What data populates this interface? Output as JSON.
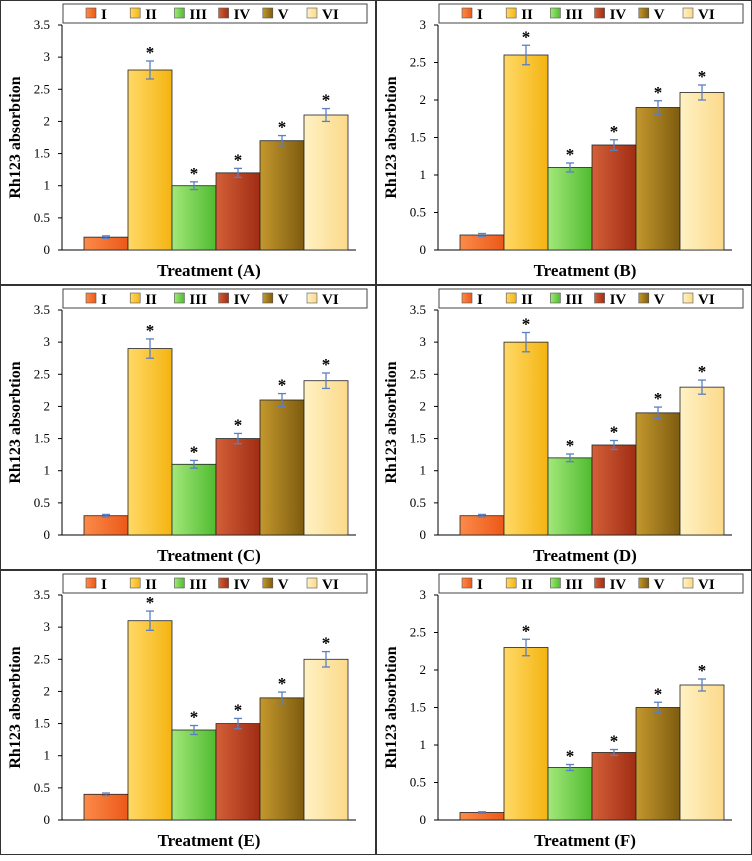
{
  "chart_data": [
    {
      "type": "bar",
      "panel": "A",
      "categories": [
        "I",
        "II",
        "III",
        "IV",
        "V",
        "VI"
      ],
      "values": [
        0.2,
        2.8,
        1.0,
        1.2,
        1.7,
        2.1
      ],
      "errors": [
        0.02,
        0.14,
        0.06,
        0.07,
        0.08,
        0.1
      ],
      "significance": [
        "",
        "*",
        "*",
        "*",
        "*",
        "*"
      ],
      "xlabel": "Treatment (A)",
      "ylabel": "Rh123 absorbtion",
      "ylim": [
        0,
        3.5
      ],
      "yticks": [
        "0",
        "0.5",
        "1",
        "1.5",
        "2",
        "2.5",
        "3",
        "3.5"
      ]
    },
    {
      "type": "bar",
      "panel": "B",
      "categories": [
        "I",
        "II",
        "III",
        "IV",
        "V",
        "VI"
      ],
      "values": [
        0.2,
        2.6,
        1.1,
        1.4,
        1.9,
        2.1
      ],
      "errors": [
        0.02,
        0.13,
        0.06,
        0.07,
        0.09,
        0.1
      ],
      "significance": [
        "",
        "*",
        "*",
        "*",
        "*",
        "*"
      ],
      "xlabel": "Treatment (B)",
      "ylabel": "Rh123 absorbtion",
      "ylim": [
        0,
        3
      ],
      "yticks": [
        "0",
        "0.5",
        "1",
        "1.5",
        "2",
        "2.5",
        "3"
      ]
    },
    {
      "type": "bar",
      "panel": "C",
      "categories": [
        "I",
        "II",
        "III",
        "IV",
        "V",
        "VI"
      ],
      "values": [
        0.3,
        2.9,
        1.1,
        1.5,
        2.1,
        2.4
      ],
      "errors": [
        0.02,
        0.15,
        0.06,
        0.08,
        0.1,
        0.12
      ],
      "significance": [
        "",
        "*",
        "*",
        "*",
        "*",
        "*"
      ],
      "xlabel": "Treatment (C)",
      "ylabel": "Rh123 absorbtion",
      "ylim": [
        0,
        3.5
      ],
      "yticks": [
        "0",
        "0.5",
        "1",
        "1.5",
        "2",
        "2.5",
        "3",
        "3.5"
      ]
    },
    {
      "type": "bar",
      "panel": "D",
      "categories": [
        "I",
        "II",
        "III",
        "IV",
        "V",
        "VI"
      ],
      "values": [
        0.3,
        3.0,
        1.2,
        1.4,
        1.9,
        2.3
      ],
      "errors": [
        0.02,
        0.15,
        0.06,
        0.07,
        0.09,
        0.11
      ],
      "significance": [
        "",
        "*",
        "*",
        "*",
        "*",
        "*"
      ],
      "xlabel": "Treatment (D)",
      "ylabel": "Rh123 absorbtion",
      "ylim": [
        0,
        3.5
      ],
      "yticks": [
        "0",
        "0.5",
        "1",
        "1.5",
        "2",
        "2.5",
        "3",
        "3.5"
      ]
    },
    {
      "type": "bar",
      "panel": "E",
      "categories": [
        "I",
        "II",
        "III",
        "IV",
        "V",
        "VI"
      ],
      "values": [
        0.4,
        3.1,
        1.4,
        1.5,
        1.9,
        2.5
      ],
      "errors": [
        0.02,
        0.15,
        0.07,
        0.08,
        0.09,
        0.12
      ],
      "significance": [
        "",
        "*",
        "*",
        "*",
        "*",
        "*"
      ],
      "xlabel": "Treatment (E)",
      "ylabel": "Rh123 absorbtion",
      "ylim": [
        0,
        3.5
      ],
      "yticks": [
        "0",
        "0.5",
        "1",
        "1.5",
        "2",
        "2.5",
        "3",
        "3.5"
      ]
    },
    {
      "type": "bar",
      "panel": "F",
      "categories": [
        "I",
        "II",
        "III",
        "IV",
        "V",
        "VI"
      ],
      "values": [
        0.1,
        2.3,
        0.7,
        0.9,
        1.5,
        1.8
      ],
      "errors": [
        0.01,
        0.11,
        0.04,
        0.04,
        0.07,
        0.08
      ],
      "significance": [
        "",
        "*",
        "*",
        "*",
        "*",
        "*"
      ],
      "xlabel": "Treatment (F)",
      "ylabel": "Rh123 absorbtion",
      "ylim": [
        0,
        3
      ],
      "yticks": [
        "0",
        "0.5",
        "1",
        "1.5",
        "2",
        "2.5",
        "3"
      ]
    }
  ],
  "series_colors": {
    "I": [
      "#fb8b4a",
      "#ec5818"
    ],
    "II": [
      "#ffd968",
      "#f4b411"
    ],
    "III": [
      "#a3e87a",
      "#4fbb30"
    ],
    "IV": [
      "#d36038",
      "#a02c14"
    ],
    "V": [
      "#c4982d",
      "#7e5c10"
    ],
    "VI": [
      "#fff2c4",
      "#fbd98a"
    ]
  },
  "error_bar_color": "#5b7fc1"
}
